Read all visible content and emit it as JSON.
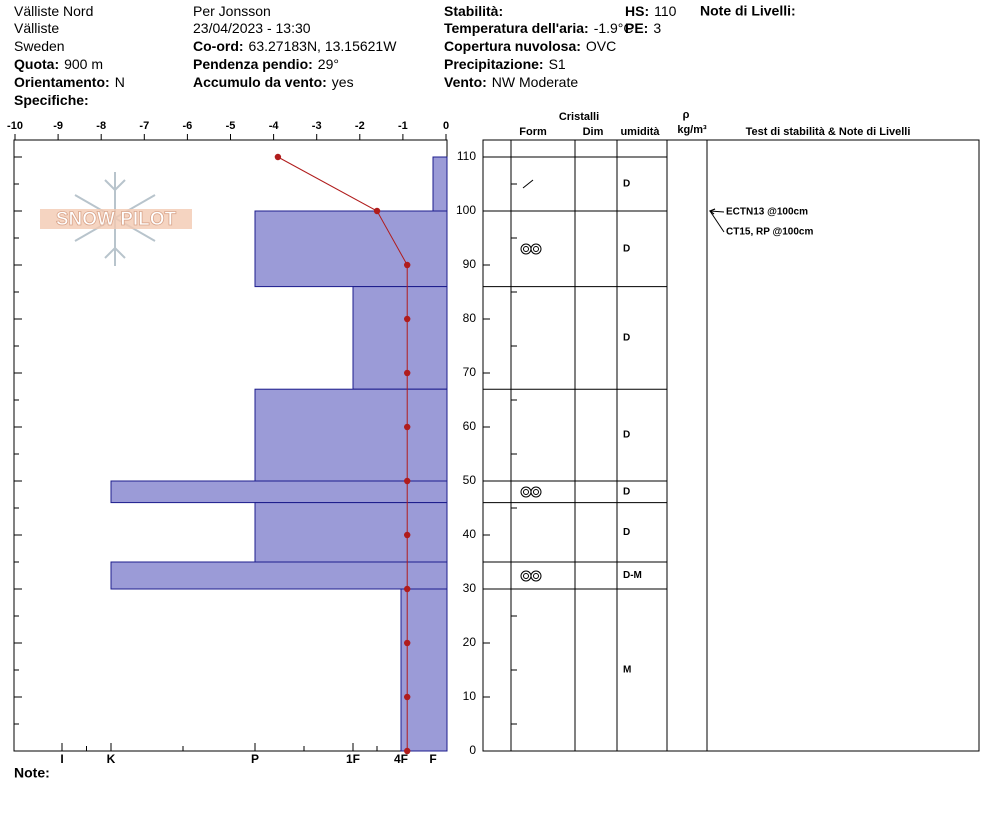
{
  "header": {
    "col1": [
      {
        "value": "Välliste Nord"
      },
      {
        "value": "Välliste"
      },
      {
        "value": "Sweden"
      },
      {
        "label": "Quota:",
        "value": "900 m"
      },
      {
        "label": "Orientamento:",
        "value": "N"
      },
      {
        "label": "Specifiche:"
      }
    ],
    "col2": [
      {
        "value": "Per Jonsson"
      },
      {
        "value": "23/04/2023 - 13:30"
      },
      {
        "label": "Co-ord:",
        "value": "63.27183N, 13.15621W"
      },
      {
        "label": "Pendenza pendio:",
        "value": "29°"
      },
      {
        "label": "Accumulo da vento:",
        "value": "yes"
      }
    ],
    "col3": [
      {
        "label": "Stabilità:"
      },
      {
        "label": "Temperatura dell'aria:",
        "value": "-1.9°C"
      },
      {
        "label": "Copertura nuvolosa:",
        "value": "OVC"
      },
      {
        "label": "Precipitazione:",
        "value": "S1"
      },
      {
        "label": "Vento:",
        "value": "NW Moderate"
      }
    ],
    "hs": {
      "label": "HS:",
      "value": "110"
    },
    "pe": {
      "label": "PE:",
      "value": "3"
    },
    "notes_title": "Note di Livelli:",
    "note": "Note:",
    "logo": "SNOW PILOT"
  },
  "table": {
    "crystals": "Cristalli",
    "form": "Form",
    "dim": "Dim",
    "moisture": "umidità",
    "rho": "ρ",
    "density_unit": "kg/m³",
    "tests_title": "Test di stabilità & Note di Livelli"
  },
  "chart_data": [
    {
      "type": "line",
      "color": "#b01c1c",
      "y": [
        110,
        100,
        90,
        80,
        70,
        60,
        50,
        40,
        30,
        20,
        10,
        0
      ],
      "values": [
        -3.9,
        -1.6,
        -0.9,
        -0.9,
        -0.9,
        -0.9,
        -0.9,
        -0.9,
        -0.9,
        -0.9,
        -0.9,
        -0.9
      ],
      "xlim": [
        -10,
        0
      ],
      "xticks": [
        -10,
        -9,
        -8,
        -7,
        -6,
        -5,
        -4,
        -3,
        -2,
        -1,
        0
      ],
      "ylim": [
        0,
        113
      ],
      "yticks": [
        0,
        10,
        20,
        30,
        40,
        50,
        60,
        70,
        80,
        90,
        100,
        110
      ]
    },
    {
      "type": "bar",
      "color": "#9b9bd7",
      "categories": [
        "I",
        "K",
        "P",
        "1F",
        "4F",
        "F"
      ],
      "layers": [
        {
          "top": 110,
          "bottom": 100,
          "hardness": "F",
          "moisture": "D"
        },
        {
          "top": 100,
          "bottom": 86,
          "hardness": "P",
          "moisture": "D"
        },
        {
          "top": 86,
          "bottom": 67,
          "hardness": "1F",
          "moisture": "D"
        },
        {
          "top": 67,
          "bottom": 50,
          "hardness": "P",
          "moisture": "D"
        },
        {
          "top": 50,
          "bottom": 46,
          "hardness": "K",
          "moisture": "D"
        },
        {
          "top": 46,
          "bottom": 35,
          "hardness": "P",
          "moisture": "D"
        },
        {
          "top": 35,
          "bottom": 30,
          "hardness": "K",
          "moisture": "D-M"
        },
        {
          "top": 30,
          "bottom": 0,
          "hardness": "4F",
          "moisture": "M"
        }
      ]
    }
  ],
  "tests": [
    {
      "label": "ECTN13 @100cm",
      "depth": 100
    },
    {
      "label": "CT15, RP @100cm",
      "depth": 100
    }
  ]
}
